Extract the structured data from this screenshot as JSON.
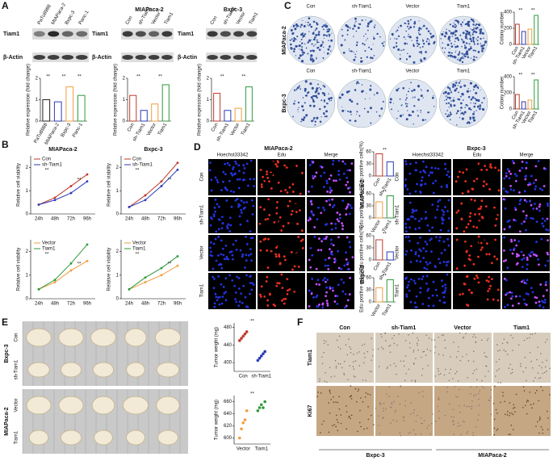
{
  "panels": {
    "letters": [
      "A",
      "B",
      "C",
      "D",
      "E",
      "F"
    ],
    "a": {
      "lanes": [
        "PaTu8988",
        "MIAPaca-2",
        "Bxpc-3",
        "Panc-1"
      ],
      "lanes2": [
        "Con",
        "sh-Tiam1",
        "Vector",
        "Tiam1"
      ],
      "blots": [
        "Tiam1",
        "β-Actin"
      ]
    },
    "c": {
      "columns": [
        "Con",
        "sh-Tiam1",
        "Vector",
        "Tiam1"
      ],
      "rows": [
        "MIAPaca-2",
        "Bxpc-3"
      ]
    },
    "d": {
      "titles": [
        "MIAPaca-2",
        "Bxpc-3"
      ],
      "stains": [
        "Hoechst33342",
        "Edu",
        "Merge"
      ],
      "rows": [
        "Con",
        "sh-Tiam1",
        "Vector",
        "Tiam1"
      ],
      "side": [
        "MIAPaca-2",
        "Bxpc-3"
      ]
    },
    "e": {
      "groups": [
        "Bxpc-3",
        "MIAPaca-2"
      ],
      "rows": [
        "Con",
        "sh-Tiam1",
        "Vector",
        "Tiam1"
      ]
    },
    "f": {
      "columns": [
        "Con",
        "sh-Tiam1",
        "Vector",
        "Tiam1"
      ],
      "rows": [
        "Tiam1",
        "Ki67"
      ],
      "bottom": [
        "Bxpc-3",
        "MIAPaca-2"
      ]
    }
  },
  "chart_data": [
    {
      "type": "bar",
      "ylabel": "Relative expression (fold change)",
      "categories": [
        "PaTu8988",
        "MIAPaca-2",
        "Bxpc-3",
        "Panc-1"
      ],
      "values": [
        1.0,
        0.9,
        1.6,
        1.2
      ],
      "colors": [
        "#222222",
        "#2b3ab8",
        "#f39c3c",
        "#2e9a3a"
      ],
      "ylim": [
        0,
        2
      ],
      "yticks": [
        0,
        1,
        2
      ],
      "annotations": [
        "**",
        "**",
        "**"
      ]
    },
    {
      "type": "bar",
      "title": "MIAPaca-2",
      "ylabel": "Relative expression (fold change)",
      "categories": [
        "Con",
        "sh-Tiam1",
        "Vector",
        "Tiam1"
      ],
      "values": [
        1.2,
        0.5,
        0.8,
        1.7
      ],
      "colors": [
        "#c0392b",
        "#2b3ab8",
        "#f39c3c",
        "#2e9a3a"
      ],
      "ylim": [
        0,
        2
      ],
      "yticks": [
        0,
        1,
        2
      ],
      "annotations": [
        "**",
        "**"
      ]
    },
    {
      "type": "bar",
      "title": "Bxpc-3",
      "ylabel": "Relative expression (fold change)",
      "categories": [
        "Con",
        "sh-Tiam1",
        "Vector",
        "Tiam1"
      ],
      "values": [
        1.3,
        0.5,
        0.6,
        1.6
      ],
      "colors": [
        "#c0392b",
        "#2b3ab8",
        "#f39c3c",
        "#2e9a3a"
      ],
      "ylim": [
        0,
        2
      ],
      "yticks": [
        0,
        1,
        2
      ],
      "annotations": [
        "**",
        "**"
      ]
    },
    {
      "type": "bar",
      "ylabel": "Colony number",
      "categories": [
        "Con",
        "sh-Tiam1",
        "Vector",
        "Tiam1"
      ],
      "values": [
        250,
        160,
        190,
        360
      ],
      "colors": [
        "#c0392b",
        "#2b3ab8",
        "#f39c3c",
        "#2e9a3a"
      ],
      "ylim": [
        0,
        400
      ],
      "yticks": [
        0,
        200,
        400
      ],
      "annotations": [
        "**",
        "**"
      ]
    },
    {
      "type": "bar",
      "ylabel": "Colony number",
      "categories": [
        "Con",
        "sh-Tiam1",
        "Vector",
        "Tiam1"
      ],
      "values": [
        180,
        90,
        110,
        360
      ],
      "colors": [
        "#c0392b",
        "#2b3ab8",
        "#f39c3c",
        "#2e9a3a"
      ],
      "ylim": [
        0,
        400
      ],
      "yticks": [
        0,
        200,
        400
      ],
      "annotations": [
        "**",
        "**"
      ]
    },
    {
      "type": "line",
      "title": "MIAPaca-2",
      "ylabel": "Relative cell viability",
      "categories": [
        "24h",
        "48h",
        "72h",
        "96h"
      ],
      "series": [
        {
          "name": "Con",
          "color": "#c0392b",
          "values": [
            0.4,
            0.7,
            1.2,
            1.7
          ]
        },
        {
          "name": "sh-Tiam1",
          "color": "#2b3ab8",
          "values": [
            0.4,
            0.6,
            0.9,
            1.4
          ]
        }
      ],
      "ylim": [
        0,
        2.5
      ],
      "yticks": [
        0,
        1,
        2
      ],
      "annotations": [
        "**",
        "**"
      ]
    },
    {
      "type": "line",
      "title": "Bxpc-3",
      "ylabel": "Relative cell viability",
      "categories": [
        "24h",
        "48h",
        "72h",
        "96h"
      ],
      "series": [
        {
          "name": "Con",
          "color": "#c0392b",
          "values": [
            0.3,
            0.8,
            1.4,
            2.2
          ]
        },
        {
          "name": "sh-Tiam1",
          "color": "#2b3ab8",
          "values": [
            0.3,
            0.6,
            1.2,
            1.9
          ]
        }
      ],
      "ylim": [
        0,
        2.5
      ],
      "yticks": [
        0,
        1,
        2
      ],
      "annotations": [
        "**",
        "**"
      ]
    },
    {
      "type": "line",
      "ylabel": "Relative cell viability",
      "categories": [
        "24h",
        "48h",
        "72h",
        "96h"
      ],
      "series": [
        {
          "name": "Vector",
          "color": "#f39c3c",
          "values": [
            0.4,
            0.7,
            1.2,
            1.6
          ]
        },
        {
          "name": "Tiam1",
          "color": "#2e9a3a",
          "values": [
            0.4,
            0.8,
            1.5,
            2.3
          ]
        }
      ],
      "ylim": [
        0,
        2.5
      ],
      "yticks": [
        0,
        1,
        2
      ],
      "annotations": [
        "**",
        "**"
      ]
    },
    {
      "type": "line",
      "ylabel": "Relative cell viability",
      "categories": [
        "24h",
        "48h",
        "72h",
        "96h"
      ],
      "series": [
        {
          "name": "Vector",
          "color": "#f39c3c",
          "values": [
            0.4,
            0.7,
            1.0,
            1.4
          ]
        },
        {
          "name": "Tiam1",
          "color": "#2e9a3a",
          "values": [
            0.4,
            0.9,
            1.3,
            1.8
          ]
        }
      ],
      "ylim": [
        0,
        2.5
      ],
      "yticks": [
        0,
        1,
        2
      ],
      "annotations": [
        "**",
        "**"
      ]
    },
    {
      "type": "bar",
      "ylabel": "Edu positive cells(%)",
      "categories": [
        "Con",
        "sh-Tiam1"
      ],
      "values": [
        55,
        35
      ],
      "colors": [
        "#c0392b",
        "#2b3ab8"
      ],
      "ylim": [
        0,
        60
      ],
      "yticks": [
        0,
        30,
        60
      ],
      "annotations": [
        "**"
      ]
    },
    {
      "type": "bar",
      "ylabel": "Edu positive cells(%)",
      "categories": [
        "Vector",
        "Tiam1"
      ],
      "values": [
        40,
        55
      ],
      "colors": [
        "#f39c3c",
        "#2e9a3a"
      ],
      "ylim": [
        0,
        60
      ],
      "yticks": [
        0,
        30,
        60
      ],
      "annotations": [
        "**"
      ]
    },
    {
      "type": "bar",
      "ylabel": "Edu positive cells(%)",
      "categories": [
        "Con",
        "sh-Tiam1"
      ],
      "values": [
        50,
        20
      ],
      "colors": [
        "#c0392b",
        "#2b3ab8"
      ],
      "ylim": [
        0,
        60
      ],
      "yticks": [
        0,
        30,
        60
      ],
      "annotations": [
        "**"
      ]
    },
    {
      "type": "bar",
      "ylabel": "Edu positive cells(%)",
      "categories": [
        "Vector",
        "Tiam1"
      ],
      "values": [
        35,
        55
      ],
      "colors": [
        "#f39c3c",
        "#2e9a3a"
      ],
      "ylim": [
        0,
        60
      ],
      "yticks": [
        0,
        30,
        60
      ],
      "annotations": [
        "**"
      ]
    },
    {
      "type": "dot",
      "ylabel": "Tumor weight (mg)",
      "groups": [
        {
          "name": "Con",
          "color": "#c0392b",
          "values": [
            450,
            455,
            460,
            465,
            470
          ]
        },
        {
          "name": "sh-Tiam1",
          "color": "#2b3ab8",
          "values": [
            405,
            410,
            415,
            420,
            425
          ]
        }
      ],
      "ylim": [
        380,
        490
      ],
      "yticks": [
        400,
        440,
        480
      ],
      "annotations": [
        "**"
      ]
    },
    {
      "type": "dot",
      "ylabel": "Tumor weight (mg)",
      "groups": [
        {
          "name": "Vector",
          "color": "#f39c3c",
          "values": [
            600,
            615,
            625,
            630,
            645
          ]
        },
        {
          "name": "Tiam1",
          "color": "#2e9a3a",
          "values": [
            645,
            650,
            655,
            650,
            660
          ]
        }
      ],
      "ylim": [
        590,
        670
      ],
      "yticks": [
        600,
        620,
        640,
        660
      ],
      "annotations": [
        "**"
      ]
    }
  ]
}
